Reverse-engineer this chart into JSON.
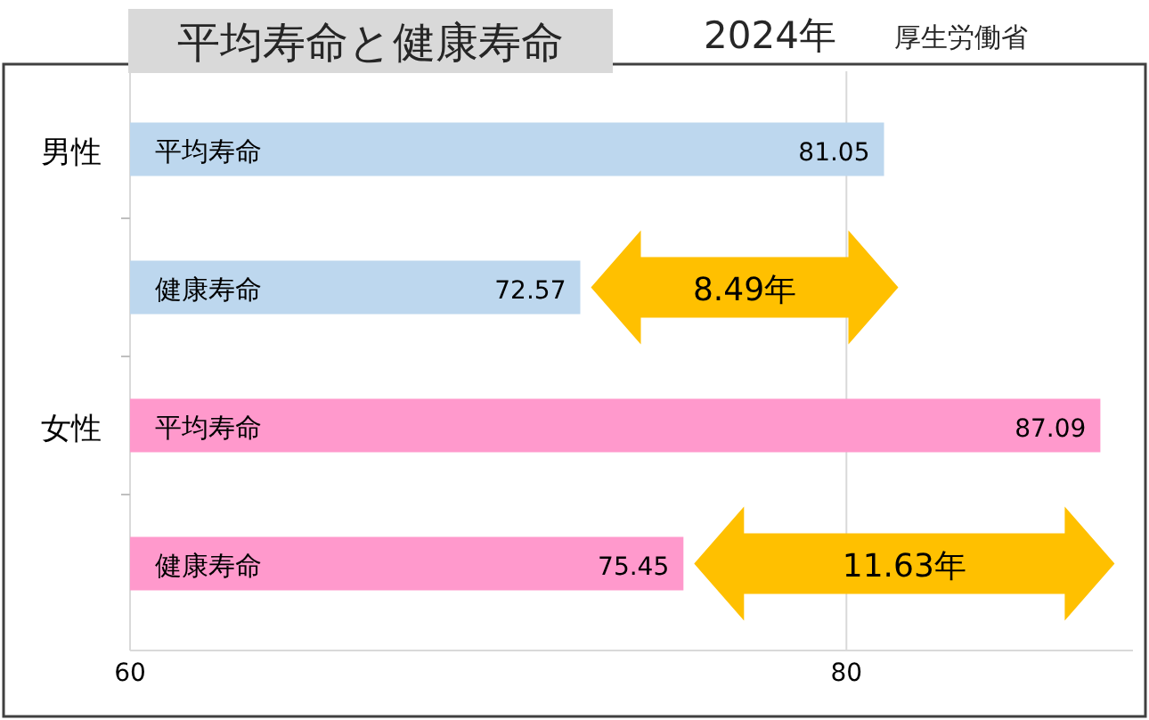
{
  "chart_data": {
    "type": "bar",
    "orientation": "horizontal",
    "title": "平均寿命と健康寿命",
    "subtitle": "2024年",
    "categories": [
      "平均寿命",
      "健康寿命",
      "平均寿命",
      "健康寿命"
    ],
    "values": [
      81.05,
      72.57,
      87.09,
      75.45
    ],
    "colors": [
      "#bdd7ee",
      "#bdd7ee",
      "#ff99cc",
      "#ff99cc"
    ],
    "data_labels": true,
    "xlim": [
      60,
      88
    ],
    "xticks": [
      60,
      80
    ],
    "grid": "x",
    "annotations": [
      "厚生労働省",
      "男性",
      "女性",
      "8.49年",
      "11.63年"
    ]
  }
}
